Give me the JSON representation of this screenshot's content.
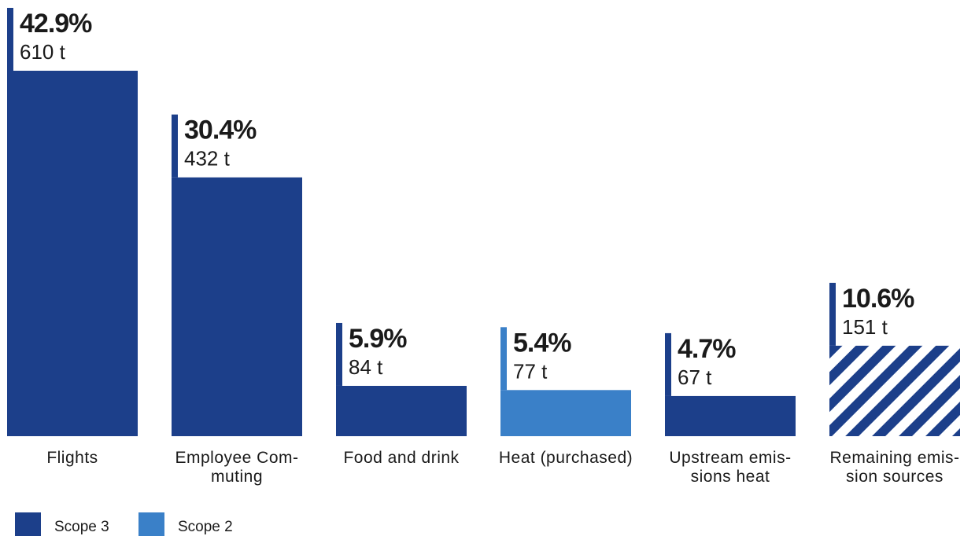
{
  "chart_data": {
    "type": "bar",
    "unit": "t",
    "categories": [
      [
        "Flights"
      ],
      [
        "Employee Com-",
        "muting"
      ],
      [
        "Food and drink"
      ],
      [
        "Heat (purchased)"
      ],
      [
        "Upstream emis-",
        "sions heat"
      ],
      [
        "Remaining emis-",
        "sion sources"
      ]
    ],
    "values": [
      610,
      432,
      84,
      77,
      67,
      151
    ],
    "percent_labels": [
      "42.9%",
      "30.4%",
      "5.9%",
      "5.4%",
      "4.7%",
      "10.6%"
    ],
    "value_labels": [
      "610 t",
      "432 t",
      "84 t",
      "77 t",
      "67 t",
      "151 t"
    ],
    "scope": [
      "Scope 3",
      "Scope 3",
      "Scope 3",
      "Scope 2",
      "Scope 3",
      "Scope 3"
    ],
    "pattern": [
      "solid",
      "solid",
      "solid",
      "solid",
      "solid",
      "hatched"
    ],
    "ylim": [
      0,
      610
    ],
    "legend": [
      {
        "label": "Scope 3",
        "color": "#1c3f8a"
      },
      {
        "label": "Scope 2",
        "color": "#3a80c8"
      }
    ],
    "legend_position": "bottom-left",
    "grid": false
  }
}
